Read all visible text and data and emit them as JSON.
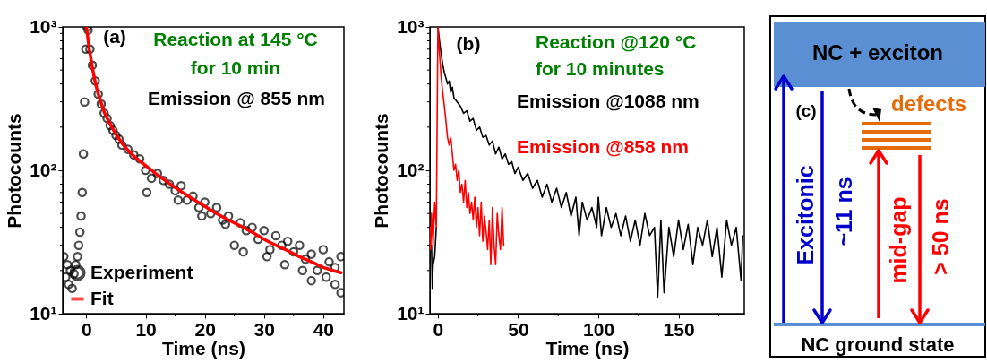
{
  "chart_data": [
    {
      "type": "scatter",
      "xlabel": "Time (ns)",
      "ylabel": "Photocounts",
      "xlim": [
        -4,
        43.5
      ],
      "ylim": [
        10,
        1000
      ],
      "log": "y",
      "legend": "bottom left",
      "xticks": [
        0,
        {
          "value": 5,
          "label": null
        },
        10,
        {
          "value": 15,
          "label": null
        },
        20,
        {
          "value": 25,
          "label": null
        },
        30,
        {
          "value": 35,
          "label": null
        },
        40
      ],
      "yticks": [
        {
          "value": 10,
          "label": "10¹"
        },
        {
          "value": 20,
          "label": null
        },
        {
          "value": 30,
          "label": null
        },
        {
          "value": 40,
          "label": null
        },
        {
          "value": 50,
          "label": null
        },
        {
          "value": 60,
          "label": null
        },
        {
          "value": 70,
          "label": null
        },
        {
          "value": 80,
          "label": null
        },
        {
          "value": 90,
          "label": null
        },
        {
          "value": 100,
          "label": "10²"
        },
        {
          "value": 200,
          "label": null
        },
        {
          "value": 300,
          "label": null
        },
        {
          "value": 400,
          "label": null
        },
        {
          "value": 500,
          "label": null
        },
        {
          "value": 600,
          "label": null
        },
        {
          "value": 700,
          "label": null
        },
        {
          "value": 800,
          "label": null
        },
        {
          "value": 900,
          "label": null
        },
        {
          "value": 1000,
          "label": "10³"
        }
      ],
      "annotations": [
        "(a)",
        "Reaction at 145 °C",
        "for 10 min",
        "Emission @ 855 nm"
      ],
      "series": [
        {
          "name": "Experiment",
          "color": "#000000",
          "marker": "circle",
          "x": [
            -3.8,
            -3.5,
            -3.2,
            -3,
            -2.7,
            -2.4,
            -2.1,
            -1.8,
            -1.5,
            -1.3,
            -1.1,
            -0.9,
            -0.7,
            -0.5,
            -0.3,
            -0.1,
            0.1,
            0.3,
            0.6,
            1,
            1.5,
            2,
            2.5,
            3,
            3.5,
            4,
            4.5,
            5,
            5.5,
            6,
            7,
            8,
            9,
            10,
            11,
            12,
            13,
            14,
            15,
            16,
            17,
            18,
            19,
            20,
            21,
            22,
            23,
            24,
            25,
            26,
            27,
            28,
            29,
            30,
            31,
            32,
            33,
            34,
            35,
            36,
            37,
            38,
            39,
            40,
            41,
            42,
            43,
            10.2,
            15.5,
            19.5,
            23.5,
            26.5,
            30.5,
            33.5,
            36.5,
            38,
            40.5,
            42,
            43
          ],
          "values": [
            25,
            18,
            22,
            16,
            20,
            15,
            19,
            22,
            25,
            30,
            37,
            48,
            70,
            130,
            300,
            700,
            1000,
            950,
            700,
            540,
            420,
            340,
            290,
            250,
            230,
            205,
            190,
            175,
            165,
            150,
            140,
            128,
            120,
            100,
            88,
            95,
            85,
            80,
            72,
            78,
            62,
            66,
            55,
            60,
            50,
            55,
            45,
            48,
            30,
            43,
            38,
            40,
            33,
            38,
            28,
            35,
            30,
            32,
            27,
            30,
            24,
            26,
            20,
            28,
            23,
            21,
            25,
            70,
            62,
            48,
            42,
            27,
            25,
            22,
            20,
            17,
            18,
            16,
            14
          ]
        },
        {
          "name": "Fit",
          "type": "line",
          "color": "#ff0000",
          "x": [
            0,
            0.5,
            1,
            1.5,
            2,
            2.5,
            3,
            4,
            5,
            6,
            7,
            8,
            9,
            10,
            12,
            14,
            16,
            18,
            20,
            22,
            24,
            26,
            28,
            30,
            32,
            34,
            36,
            38,
            40,
            42,
            43
          ],
          "values": [
            1000,
            700,
            520,
            410,
            340,
            295,
            255,
            210,
            178,
            155,
            138,
            126,
            116,
            108,
            93,
            81,
            71,
            63,
            56,
            50,
            45,
            41,
            37,
            33,
            30,
            27.5,
            25,
            23,
            21,
            19.8,
            19.3
          ]
        }
      ]
    },
    {
      "type": "line",
      "xlabel": "Time (ns)",
      "ylabel": "Photocounts",
      "xlim": [
        -5,
        191
      ],
      "ylim": [
        10,
        1000
      ],
      "log": "y",
      "xticks": [
        0,
        {
          "value": 25,
          "label": null
        },
        50,
        {
          "value": 75,
          "label": null
        },
        100,
        {
          "value": 125,
          "label": null
        },
        150,
        {
          "value": 175,
          "label": null
        }
      ],
      "yticks": [
        {
          "value": 10,
          "label": "10¹"
        },
        {
          "value": 20,
          "label": null
        },
        {
          "value": 30,
          "label": null
        },
        {
          "value": 40,
          "label": null
        },
        {
          "value": 50,
          "label": null
        },
        {
          "value": 60,
          "label": null
        },
        {
          "value": 70,
          "label": null
        },
        {
          "value": 80,
          "label": null
        },
        {
          "value": 90,
          "label": null
        },
        {
          "value": 100,
          "label": "10²"
        },
        {
          "value": 200,
          "label": null
        },
        {
          "value": 300,
          "label": null
        },
        {
          "value": 400,
          "label": null
        },
        {
          "value": 500,
          "label": null
        },
        {
          "value": 600,
          "label": null
        },
        {
          "value": 700,
          "label": null
        },
        {
          "value": 800,
          "label": null
        },
        {
          "value": 900,
          "label": null
        },
        {
          "value": 1000,
          "label": "10³"
        }
      ],
      "annotations": [
        "(b)",
        "Reaction @120 °C",
        "for 10 minutes"
      ],
      "series": [
        {
          "name": "Emission @1088 nm",
          "color": "#000000",
          "x": [
            -4,
            -3.5,
            -3,
            -2,
            -1,
            -0.5,
            0,
            1,
            2,
            3,
            4,
            5,
            6,
            7,
            8,
            9,
            10,
            12,
            14,
            16,
            18,
            20,
            22,
            24,
            26,
            28,
            30,
            32,
            34,
            36,
            38,
            40,
            42,
            44,
            46,
            48,
            50,
            53,
            56,
            59,
            62,
            65,
            68,
            71,
            74,
            77,
            80,
            83,
            86,
            88,
            90,
            93,
            96,
            99,
            100,
            102,
            105,
            108,
            111,
            114,
            117,
            120,
            123,
            126,
            129,
            132,
            135,
            137,
            139,
            141,
            144,
            147,
            150,
            153,
            156,
            159,
            162,
            165,
            168,
            171,
            174,
            177,
            180,
            183,
            186,
            189,
            190
          ],
          "values": [
            30,
            15,
            22,
            25,
            40,
            null,
            1000,
            800,
            650,
            550,
            480,
            440,
            400,
            420,
            350,
            380,
            320,
            300,
            280,
            250,
            260,
            220,
            230,
            190,
            200,
            170,
            175,
            150,
            160,
            130,
            145,
            120,
            130,
            110,
            115,
            95,
            105,
            85,
            95,
            75,
            85,
            65,
            80,
            60,
            75,
            55,
            70,
            48,
            65,
            35,
            60,
            45,
            55,
            40,
            65,
            35,
            55,
            40,
            50,
            35,
            48,
            32,
            45,
            30,
            50,
            35,
            40,
            13,
            45,
            14,
            40,
            25,
            45,
            28,
            42,
            22,
            40,
            30,
            45,
            25,
            40,
            18,
            45,
            30,
            40,
            17,
            35
          ]
        },
        {
          "name": "Emission @858 nm",
          "color": "#ff0000",
          "x": [
            -5,
            -4.5,
            -4,
            -3,
            -2,
            -1,
            -0.5,
            0,
            1,
            2,
            3,
            4,
            5,
            6,
            7,
            8,
            9,
            10,
            11,
            12,
            13,
            14,
            15,
            16,
            17,
            18,
            19,
            20,
            21,
            22,
            23,
            24,
            25,
            26,
            27,
            28,
            29,
            30,
            31,
            32,
            33,
            34,
            35,
            36,
            37,
            38,
            39,
            40,
            41
          ],
          "values": [
            40,
            28,
            50,
            30,
            60,
            40,
            200,
            1000,
            650,
            450,
            350,
            280,
            220,
            170,
            150,
            170,
            130,
            100,
            110,
            85,
            100,
            70,
            80,
            60,
            85,
            55,
            70,
            50,
            60,
            45,
            65,
            40,
            55,
            35,
            60,
            32,
            48,
            38,
            28,
            45,
            22,
            55,
            30,
            22,
            50,
            35,
            28,
            55,
            30
          ]
        }
      ]
    },
    {
      "type": "other",
      "annotations": [
        "NC + exciton",
        "(c)",
        "defects",
        "Excitonic",
        "~11 ns",
        "mid-gap",
        "> 50 ns",
        "NC ground state"
      ]
    }
  ]
}
